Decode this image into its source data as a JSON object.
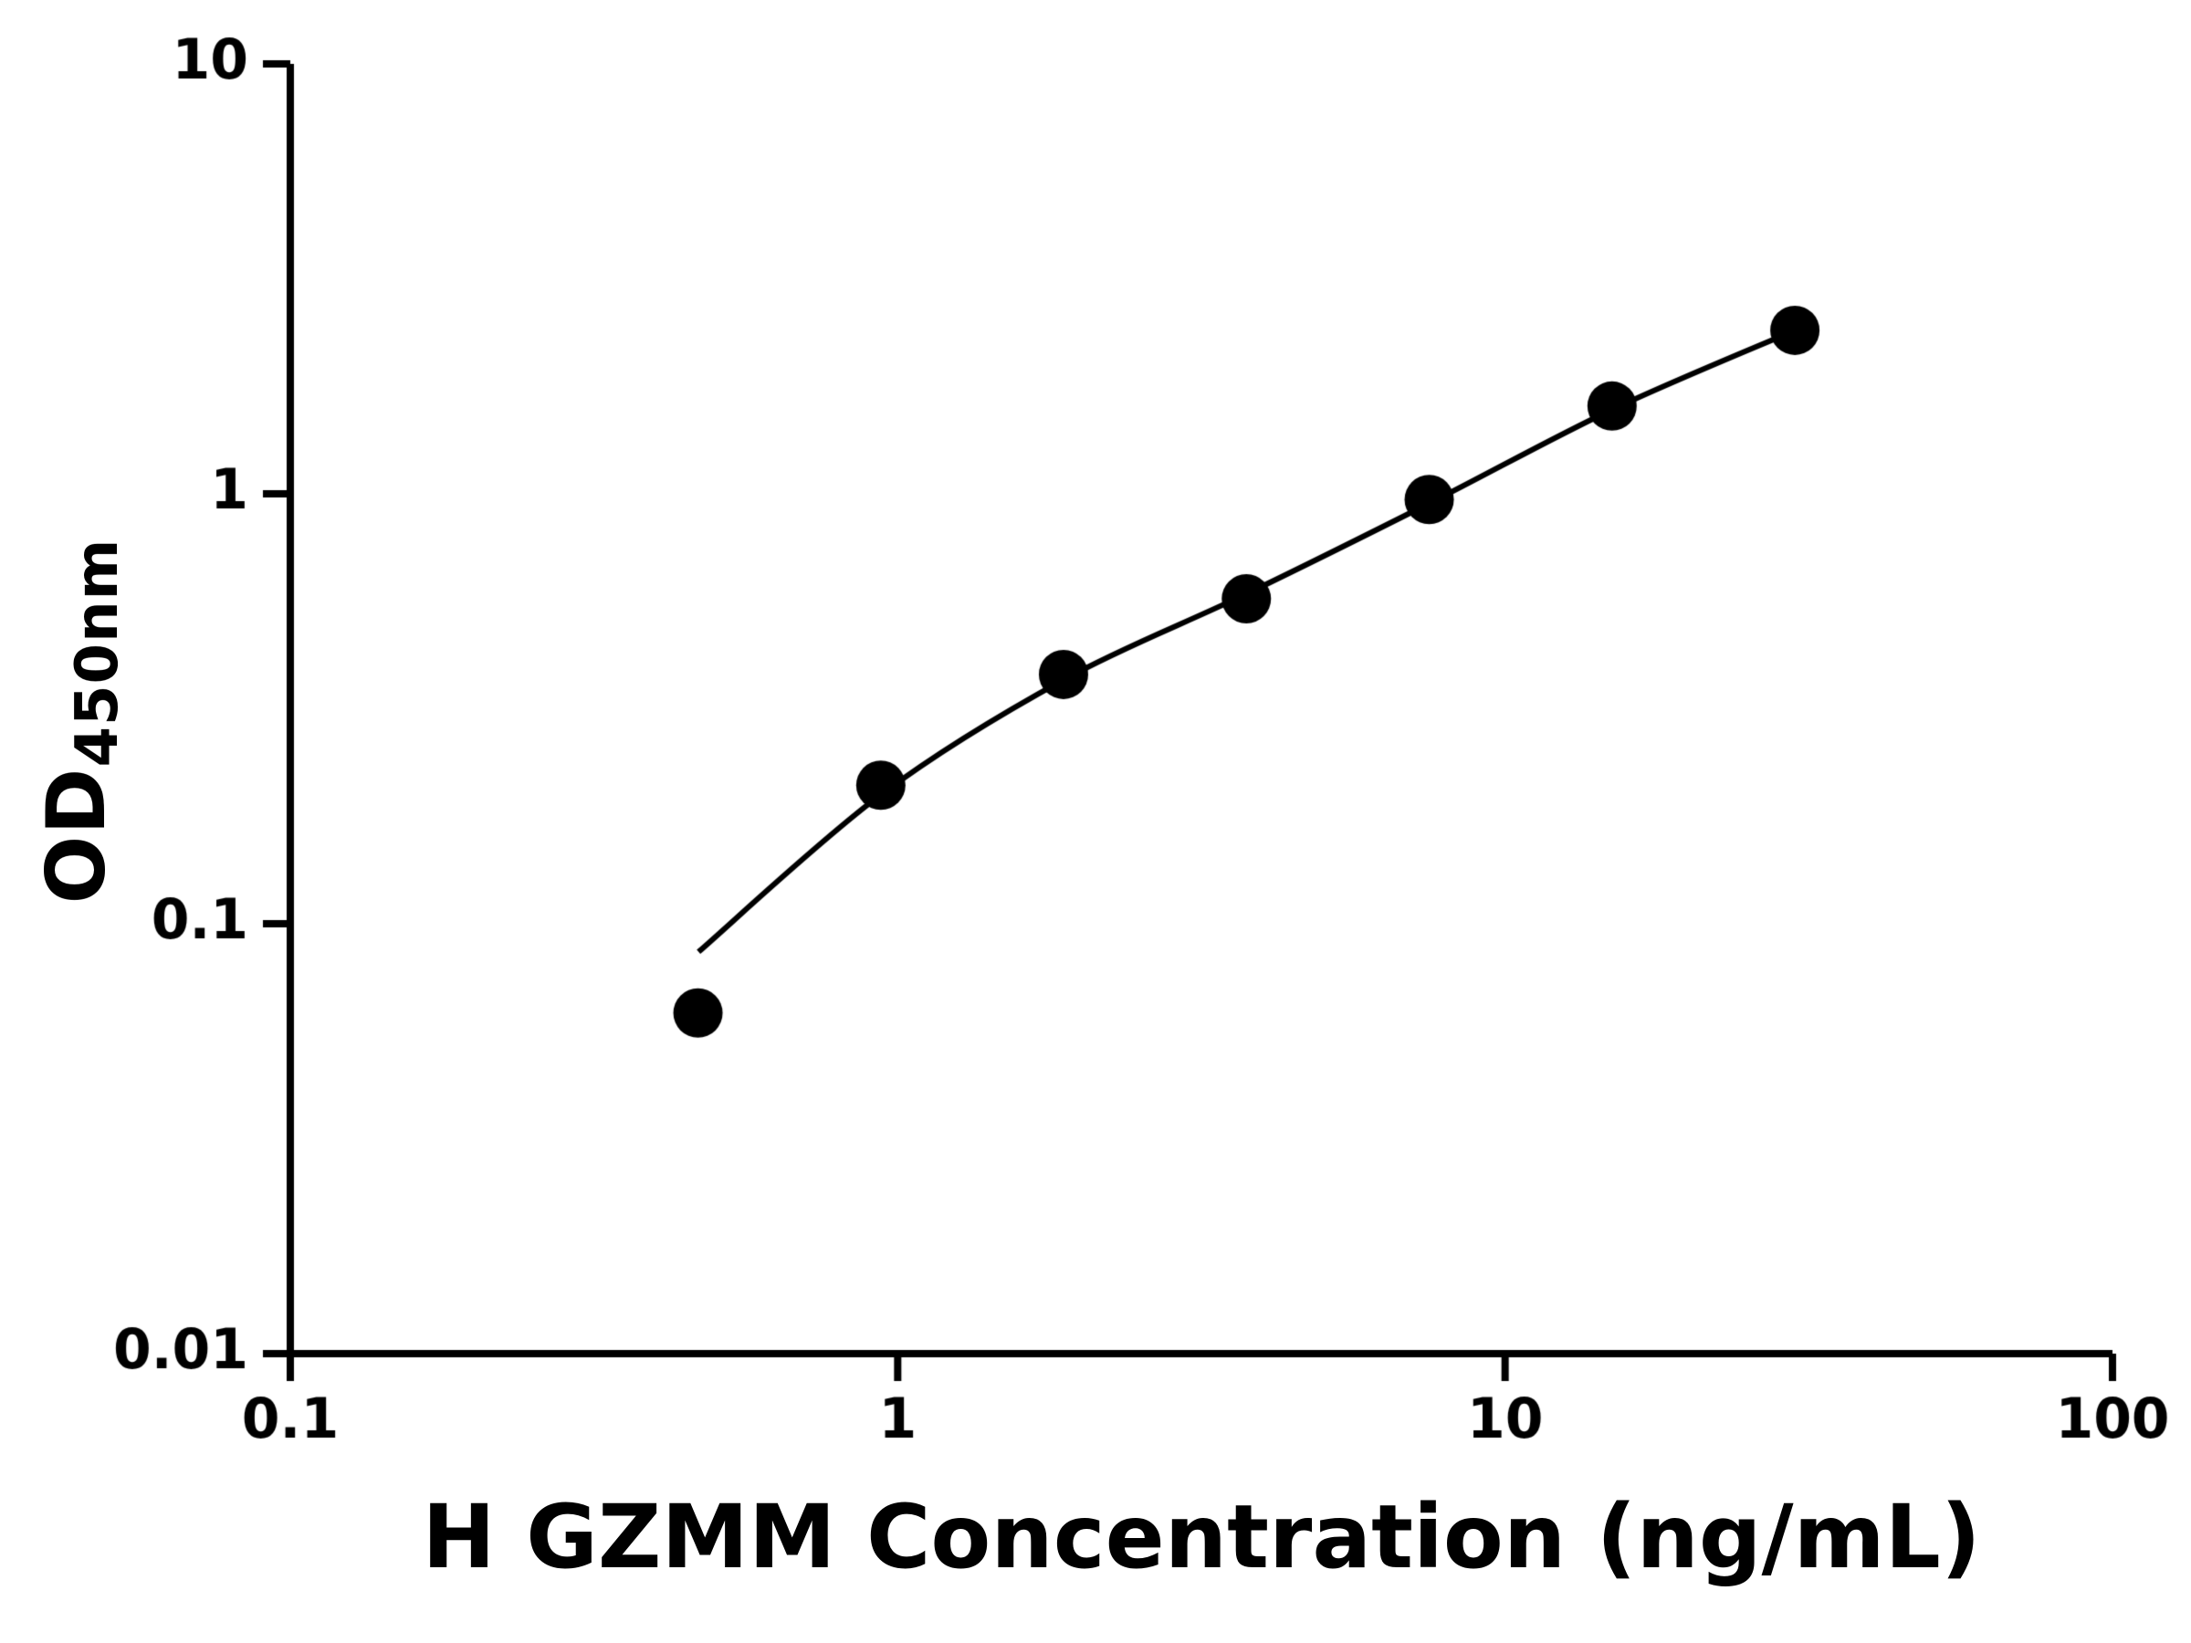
{
  "chart_data": {
    "type": "scatter",
    "title": "",
    "xlabel": "H GZMM Concentration (ng/mL)",
    "ylabel_main": "OD",
    "ylabel_sub": "450nm",
    "x_scale": "log",
    "y_scale": "log",
    "xlim": [
      0.1,
      100
    ],
    "ylim": [
      0.01,
      10
    ],
    "x_ticks": [
      0.1,
      1,
      10,
      100
    ],
    "x_tick_labels": [
      "0.1",
      "1",
      "10",
      "100"
    ],
    "y_ticks": [
      0.01,
      0.1,
      1,
      10
    ],
    "y_tick_labels": [
      "0.01",
      "0.1",
      "1",
      "10"
    ],
    "grid": false,
    "legend": null,
    "axis_color": "#000000",
    "background": "#ffffff",
    "series": [
      {
        "marker": "circle",
        "color": "#000000",
        "fit_line": true,
        "points": [
          {
            "x": 0.469,
            "y": 0.062
          },
          {
            "x": 0.938,
            "y": 0.21
          },
          {
            "x": 1.875,
            "y": 0.38
          },
          {
            "x": 3.75,
            "y": 0.57
          },
          {
            "x": 7.5,
            "y": 0.97
          },
          {
            "x": 15,
            "y": 1.6
          },
          {
            "x": 30,
            "y": 2.4
          }
        ],
        "fit_curve": [
          {
            "x": 0.47,
            "y": 0.086
          },
          {
            "x": 0.94,
            "y": 0.2
          },
          {
            "x": 1.88,
            "y": 0.37
          },
          {
            "x": 3.75,
            "y": 0.585
          },
          {
            "x": 7.5,
            "y": 0.95
          },
          {
            "x": 15,
            "y": 1.57
          },
          {
            "x": 30,
            "y": 2.4
          }
        ]
      }
    ]
  }
}
